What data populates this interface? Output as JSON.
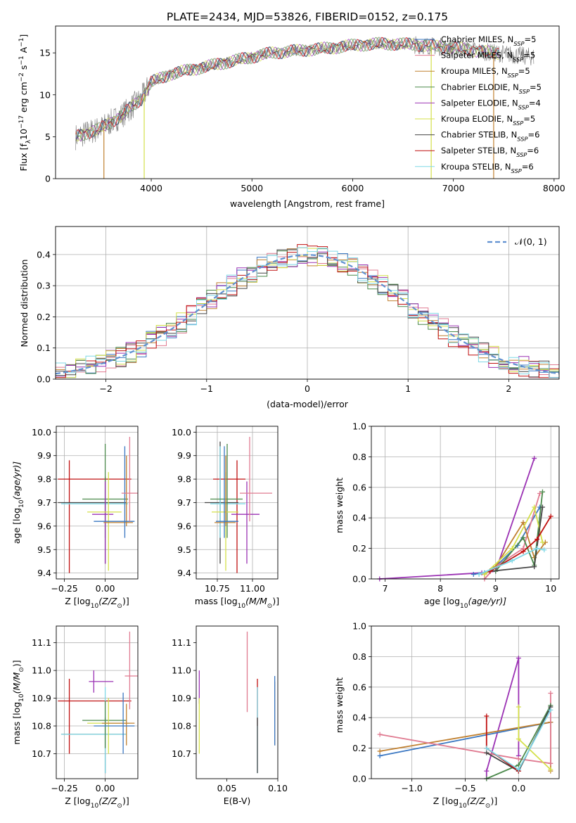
{
  "figure": {
    "title": "PLATE=2434, MJD=53826, FIBERID=0152, z=0.175"
  },
  "colors": {
    "cm": "#3a77c2",
    "sm": "#e07b91",
    "km": "#c08030",
    "ce": "#4c8a4c",
    "se": "#9b32b4",
    "ke": "#d4e04a",
    "cs": "#444444",
    "ss": "#c01010",
    "ks": "#7fd8e6",
    "obs": "#777777",
    "gauss": "#6090d0",
    "thin_blue": "#5b8ed6"
  },
  "chart_data": [
    {
      "id": "spectrum",
      "type": "line",
      "xlabel": "wavelength [Angstrom, rest frame]",
      "ylabel": "Flux [f",
      "xlim": [
        3050,
        8050
      ],
      "ylim": [
        0,
        18.2
      ],
      "xticks": [
        "4000",
        "5000",
        "6000",
        "7000",
        "8000"
      ],
      "yticks": [
        "0",
        "5",
        "10",
        "15"
      ],
      "grid": false,
      "legend_position": "upper-right",
      "legend": [
        {
          "label": "Chabrier MILES, N",
          "sub": "SSP",
          "tail": "=5",
          "color": "cm"
        },
        {
          "label": "Salpeter MILES, N",
          "sub": "SSP",
          "tail": "=5",
          "color": "sm"
        },
        {
          "label": "Kroupa MILES, N",
          "sub": "SSP",
          "tail": "=5",
          "color": "km"
        },
        {
          "label": "Chabrier ELODIE, N",
          "sub": "SSP",
          "tail": "=5",
          "color": "ce"
        },
        {
          "label": "Salpeter ELODIE, N",
          "sub": "SSP",
          "tail": "=4",
          "color": "se"
        },
        {
          "label": "Kroupa ELODIE, N",
          "sub": "SSP",
          "tail": "=5",
          "color": "ke"
        },
        {
          "label": "Chabrier STELIB, N",
          "sub": "SSP",
          "tail": "=6",
          "color": "cs"
        },
        {
          "label": "Salpeter STELIB, N",
          "sub": "SSP",
          "tail": "=6",
          "color": "ss"
        },
        {
          "label": "Kroupa STELIB, N",
          "sub": "SSP",
          "tail": "=6",
          "color": "ks"
        }
      ],
      "continuum": {
        "x": [
          3250,
          3500,
          3700,
          3900,
          4000,
          4200,
          4400,
          4600,
          4800,
          5000,
          5200,
          5500,
          5800,
          6000,
          6300,
          6600,
          7000,
          7400,
          7800
        ],
        "y": [
          5.0,
          6.0,
          7.5,
          9.5,
          11.5,
          12.5,
          13.0,
          13.5,
          14.0,
          14.5,
          15.0,
          15.3,
          15.6,
          15.9,
          16.1,
          16.0,
          15.6,
          15.0,
          14.5
        ]
      },
      "features": [
        {
          "x": 3530,
          "kind": "drop-to-zero",
          "series": "km"
        },
        {
          "x": 3930,
          "kind": "drop-to-zero",
          "series": "ke"
        },
        {
          "x": 6780,
          "kind": "drop-to-zero",
          "series": "ke"
        },
        {
          "x": 7400,
          "kind": "drop-to-zero",
          "series": "km"
        }
      ]
    },
    {
      "id": "residuals",
      "type": "step",
      "xlabel": "(data-model)/error",
      "ylabel": "Normed distribution",
      "xlim": [
        -2.5,
        2.5
      ],
      "ylim": [
        0,
        0.49
      ],
      "xticks": [
        "−2",
        "−1",
        "0",
        "1",
        "2"
      ],
      "yticks": [
        "0.0",
        "0.1",
        "0.2",
        "0.3",
        "0.4"
      ],
      "grid": true,
      "legend_position": "upper-right",
      "legend": [
        {
          "label": "𝒩(0, 1)",
          "style": "dashed",
          "color": "gauss"
        }
      ],
      "bin_width": 0.1,
      "series": [
        "cm",
        "sm",
        "km",
        "ce",
        "se",
        "ke",
        "cs",
        "ss",
        "ks"
      ]
    },
    {
      "id": "age-Z",
      "type": "errorbar",
      "xlabel": "Z [log",
      "xlabel_tail": "(Z/Z",
      "ylabel": "age  [log",
      "ylabel_tail": "(age/yr)]",
      "xlim": [
        -0.3,
        0.2
      ],
      "ylim": [
        9.375,
        10.025
      ],
      "xticks": [
        "−0.25",
        "0.00"
      ],
      "xtick_values": [
        -0.25,
        0.0
      ],
      "yticks": [
        "9.4",
        "9.5",
        "9.6",
        "9.7",
        "9.8",
        "9.9",
        "10.0"
      ],
      "ytick_values": [
        9.4,
        9.5,
        9.6,
        9.7,
        9.8,
        9.9,
        10.0
      ],
      "grid": true,
      "points": [
        {
          "s": "ss",
          "x": -0.22,
          "y": 9.8,
          "xl": -0.29,
          "xh": 0.16,
          "yl": 9.4,
          "yh": 9.88
        },
        {
          "s": "cs",
          "x": 0.0,
          "y": 9.7,
          "xl": -0.29,
          "xh": 0.13,
          "yl": 9.44,
          "yh": 9.81
        },
        {
          "s": "ks",
          "x": 0.0,
          "y": 9.695,
          "xl": -0.27,
          "xh": 0.14,
          "yl": 9.55,
          "yh": 9.75
        },
        {
          "s": "ce",
          "x": 0.0,
          "y": 9.715,
          "xl": -0.14,
          "xh": 0.14,
          "yl": 9.55,
          "yh": 9.95
        },
        {
          "s": "se",
          "x": 0.0,
          "y": 9.65,
          "xl": -0.08,
          "xh": 0.05,
          "yl": 9.44,
          "yh": 9.79
        },
        {
          "s": "ke",
          "x": 0.02,
          "y": 9.66,
          "xl": -0.11,
          "xh": 0.1,
          "yl": 9.41,
          "yh": 9.83
        },
        {
          "s": "km",
          "x": 0.13,
          "y": 9.615,
          "xl": -0.01,
          "xh": 0.17,
          "yl": 9.6,
          "yh": 9.9
        },
        {
          "s": "cm",
          "x": 0.12,
          "y": 9.62,
          "xl": -0.07,
          "xh": 0.18,
          "yl": 9.55,
          "yh": 9.94
        },
        {
          "s": "sm",
          "x": 0.15,
          "y": 9.74,
          "xl": 0.1,
          "xh": 0.2,
          "yl": 9.62,
          "yh": 9.98
        }
      ]
    },
    {
      "id": "age-mass",
      "type": "errorbar",
      "xlabel": "mass [log",
      "xlabel_tail": "(M/M",
      "xlim": [
        10.6,
        11.18
      ],
      "ylim": [
        9.375,
        10.025
      ],
      "xticks": [
        "10.75",
        "11.00"
      ],
      "xtick_values": [
        10.75,
        11.0
      ],
      "yticks": [
        "9.4",
        "9.5",
        "9.6",
        "9.7",
        "9.8",
        "9.9",
        "10.0"
      ],
      "ytick_values": [
        9.4,
        9.5,
        9.6,
        9.7,
        9.8,
        9.9,
        10.0
      ],
      "grid": true,
      "points": [
        {
          "s": "ss",
          "x": 10.89,
          "y": 9.8,
          "xl": 10.72,
          "xh": 10.95,
          "yl": 9.4,
          "yh": 9.88
        },
        {
          "s": "cs",
          "x": 10.77,
          "y": 9.7,
          "xl": 10.66,
          "xh": 10.9,
          "yl": 9.44,
          "yh": 9.96
        },
        {
          "s": "ks",
          "x": 10.77,
          "y": 9.695,
          "xl": 10.7,
          "xh": 10.95,
          "yl": 9.55,
          "yh": 9.94
        },
        {
          "s": "ce",
          "x": 10.82,
          "y": 9.715,
          "xl": 10.7,
          "xh": 10.93,
          "yl": 9.55,
          "yh": 9.95
        },
        {
          "s": "se",
          "x": 10.96,
          "y": 9.65,
          "xl": 10.85,
          "xh": 11.05,
          "yl": 9.44,
          "yh": 9.79
        },
        {
          "s": "ke",
          "x": 10.81,
          "y": 9.66,
          "xl": 10.71,
          "xh": 10.9,
          "yl": 9.41,
          "yh": 9.83
        },
        {
          "s": "km",
          "x": 10.81,
          "y": 9.615,
          "xl": 10.73,
          "xh": 10.88,
          "yl": 9.6,
          "yh": 9.9
        },
        {
          "s": "cm",
          "x": 10.8,
          "y": 9.62,
          "xl": 10.74,
          "xh": 10.9,
          "yl": 9.55,
          "yh": 9.94
        },
        {
          "s": "sm",
          "x": 10.98,
          "y": 9.74,
          "xl": 10.91,
          "xh": 11.14,
          "yl": 9.62,
          "yh": 9.98
        }
      ]
    },
    {
      "id": "weight-age",
      "type": "line",
      "xlabel": "age  [log",
      "xlabel_tail": "(age/yr)]",
      "ylabel": "mass weight",
      "xlim": [
        6.75,
        10.15
      ],
      "ylim": [
        0,
        1
      ],
      "xticks": [
        "7",
        "8",
        "9",
        "10"
      ],
      "xtick_values": [
        7,
        8,
        9,
        10
      ],
      "yticks": [
        "0.0",
        "0.2",
        "0.4",
        "0.6",
        "0.8",
        "1.0"
      ],
      "ytick_values": [
        0,
        0.2,
        0.4,
        0.6,
        0.8,
        1.0
      ],
      "grid": true,
      "series": [
        {
          "s": "se",
          "x": [
            6.9,
            8.75,
            9.0,
            9.7
          ],
          "y": [
            0.0,
            0.04,
            0.05,
            0.79
          ]
        },
        {
          "s": "cm",
          "x": [
            8.6,
            8.8,
            9.0,
            9.4,
            9.8
          ],
          "y": [
            0.03,
            0.04,
            0.08,
            0.22,
            0.47
          ]
        },
        {
          "s": "sm",
          "x": [
            8.8,
            9.0,
            9.5,
            9.8
          ],
          "y": [
            0.0,
            0.08,
            0.2,
            0.56
          ]
        },
        {
          "s": "km",
          "x": [
            8.8,
            9.0,
            9.5,
            9.7,
            9.9
          ],
          "y": [
            0.03,
            0.08,
            0.37,
            0.14,
            0.24
          ]
        },
        {
          "s": "ce",
          "x": [
            9.0,
            9.5,
            9.7,
            9.85
          ],
          "y": [
            0.05,
            0.27,
            0.09,
            0.57
          ]
        },
        {
          "s": "ke",
          "x": [
            8.8,
            9.3,
            9.7,
            9.85
          ],
          "y": [
            0.03,
            0.2,
            0.47,
            0.24
          ]
        },
        {
          "s": "cs",
          "x": [
            8.9,
            9.7,
            9.85
          ],
          "y": [
            0.05,
            0.08,
            0.47
          ]
        },
        {
          "s": "ss",
          "x": [
            8.9,
            9.5,
            9.75,
            10.0
          ],
          "y": [
            0.05,
            0.18,
            0.26,
            0.41
          ]
        },
        {
          "s": "ks",
          "x": [
            8.7,
            9.3,
            9.75,
            9.88
          ],
          "y": [
            0.03,
            0.12,
            0.2,
            0.19
          ]
        }
      ]
    },
    {
      "id": "mass-Z",
      "type": "errorbar",
      "xlabel": "Z [log",
      "xlabel_tail": "(Z/Z",
      "ylabel": "mass [log",
      "ylabel_tail": "(M/M",
      "xlim": [
        -0.3,
        0.2
      ],
      "ylim": [
        10.61,
        11.16
      ],
      "xticks": [
        "−0.25",
        "0.00"
      ],
      "xtick_values": [
        -0.25,
        0.0
      ],
      "yticks": [
        "10.7",
        "10.8",
        "10.9",
        "11.0",
        "11.1"
      ],
      "ytick_values": [
        10.7,
        10.8,
        10.9,
        11.0,
        11.1
      ],
      "grid": true,
      "points": [
        {
          "s": "ss",
          "x": -0.22,
          "y": 10.89,
          "xl": -0.29,
          "xh": 0.16,
          "yl": 10.7,
          "yh": 10.97
        },
        {
          "s": "cs",
          "x": 0.0,
          "y": 10.77,
          "xl": -0.27,
          "xh": 0.13,
          "yl": 10.63,
          "yh": 10.83
        },
        {
          "s": "ks",
          "x": 0.0,
          "y": 10.77,
          "xl": -0.27,
          "xh": 0.13,
          "yl": 10.63,
          "yh": 10.94
        },
        {
          "s": "ce",
          "x": 0.0,
          "y": 10.82,
          "xl": -0.14,
          "xh": 0.13,
          "yl": 10.72,
          "yh": 10.89
        },
        {
          "s": "se",
          "x": -0.07,
          "y": 10.96,
          "xl": -0.1,
          "xh": 0.05,
          "yl": 10.92,
          "yh": 11.0
        },
        {
          "s": "ke",
          "x": 0.02,
          "y": 10.81,
          "xl": -0.11,
          "xh": 0.15,
          "yl": 10.7,
          "yh": 10.9
        },
        {
          "s": "km",
          "x": 0.13,
          "y": 10.81,
          "xl": -0.02,
          "xh": 0.18,
          "yl": 10.73,
          "yh": 10.88
        },
        {
          "s": "cm",
          "x": 0.11,
          "y": 10.8,
          "xl": -0.07,
          "xh": 0.18,
          "yl": 10.7,
          "yh": 10.92
        },
        {
          "s": "sm",
          "x": 0.15,
          "y": 10.98,
          "xl": 0.12,
          "xh": 0.2,
          "yl": 10.86,
          "yh": 11.14
        }
      ]
    },
    {
      "id": "mass-EBV",
      "type": "errorbar",
      "xlabel": "E(B-V)",
      "xlim": [
        0.02,
        0.1
      ],
      "ylim": [
        10.61,
        11.16
      ],
      "xticks": [
        "0.05",
        "0.10"
      ],
      "xtick_values": [
        0.05,
        0.1
      ],
      "yticks": [
        "10.7",
        "10.8",
        "10.9",
        "11.0",
        "11.1"
      ],
      "ytick_values": [
        10.7,
        10.8,
        10.9,
        11.0,
        11.1
      ],
      "grid": false,
      "points": [
        {
          "s": "se",
          "x": 0.023,
          "y": 10.96,
          "yl": 10.88,
          "yh": 11.0
        },
        {
          "s": "ke",
          "x": 0.023,
          "y": 10.81,
          "yl": 10.7,
          "yh": 10.9
        },
        {
          "s": "sm",
          "x": 0.07,
          "y": 10.98,
          "yl": 10.85,
          "yh": 11.14
        },
        {
          "s": "ss",
          "x": 0.08,
          "y": 10.89,
          "yl": 10.8,
          "yh": 10.97
        },
        {
          "s": "ks",
          "x": 0.08,
          "y": 10.77,
          "yl": 10.63,
          "yh": 10.94
        },
        {
          "s": "cs",
          "x": 0.08,
          "y": 10.77,
          "yl": 10.63,
          "yh": 10.83
        },
        {
          "s": "km",
          "x": 0.097,
          "y": 10.81,
          "yl": 10.73,
          "yh": 10.96
        },
        {
          "s": "cm",
          "x": 0.097,
          "y": 10.8,
          "yl": 10.73,
          "yh": 10.98
        }
      ]
    },
    {
      "id": "weight-Z",
      "type": "line",
      "xlabel": "Z [log",
      "xlabel_tail": "(Z/Z",
      "ylabel": "mass weight",
      "xlim": [
        -1.38,
        0.38
      ],
      "ylim": [
        0,
        1
      ],
      "xticks": [
        "−1.0",
        "−0.5",
        "0.0"
      ],
      "xtick_values": [
        -1.0,
        -0.5,
        0.0
      ],
      "yticks": [
        "0.0",
        "0.2",
        "0.4",
        "0.6",
        "0.8",
        "1.0"
      ],
      "ytick_values": [
        0,
        0.2,
        0.4,
        0.6,
        0.8,
        1.0
      ],
      "grid": true,
      "series": [
        {
          "s": "se",
          "x": [
            -0.3,
            -0.3,
            0.0,
            0.0
          ],
          "y": [
            0.0,
            0.05,
            0.79,
            0.15
          ]
        },
        {
          "s": "cm",
          "x": [
            -1.3,
            0.3
          ],
          "y": [
            0.15,
            0.37
          ]
        },
        {
          "s": "km",
          "x": [
            -1.3,
            0.3,
            0.3
          ],
          "y": [
            0.18,
            0.37,
            0.05
          ]
        },
        {
          "s": "sm",
          "x": [
            -1.3,
            0.0,
            0.3,
            0.3
          ],
          "y": [
            0.29,
            0.13,
            0.1,
            0.56
          ]
        },
        {
          "s": "ce",
          "x": [
            -0.3,
            0.0,
            0.3
          ],
          "y": [
            0.0,
            0.09,
            0.48
          ]
        },
        {
          "s": "ke",
          "x": [
            0.0,
            0.0,
            0.3
          ],
          "y": [
            0.47,
            0.26,
            0.06
          ]
        },
        {
          "s": "cs",
          "x": [
            -0.3,
            0.0,
            0.3
          ],
          "y": [
            0.17,
            0.05,
            0.47
          ]
        },
        {
          "s": "ss",
          "x": [
            -0.3,
            -0.3,
            0.0
          ],
          "y": [
            0.41,
            0.2,
            0.05
          ]
        },
        {
          "s": "ks",
          "x": [
            -0.3,
            0.0,
            0.3
          ],
          "y": [
            0.2,
            0.06,
            0.45
          ]
        }
      ]
    }
  ]
}
